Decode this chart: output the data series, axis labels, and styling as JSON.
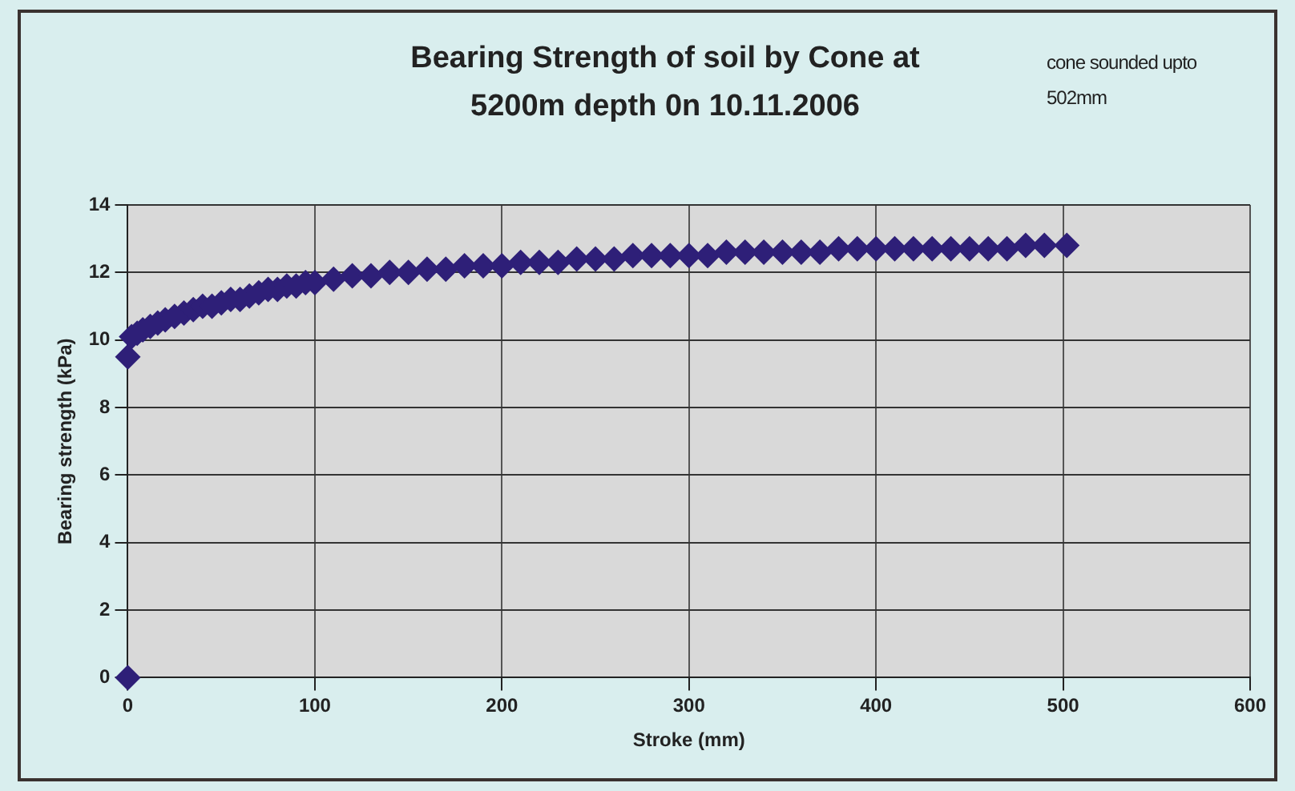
{
  "chart_data": {
    "type": "scatter",
    "title": "Bearing Strength of soil by Cone at 5200m depth 0n 10.11.2006",
    "annotations": [
      "cone sounded upto 502mm"
    ],
    "xlabel": "Stroke (mm)",
    "ylabel": "Bearing strength (kPa)",
    "x": [
      0,
      0,
      2,
      5,
      8,
      12,
      16,
      20,
      25,
      30,
      35,
      40,
      45,
      50,
      55,
      60,
      65,
      70,
      75,
      80,
      85,
      90,
      95,
      100,
      110,
      120,
      130,
      140,
      150,
      160,
      170,
      180,
      190,
      200,
      210,
      220,
      230,
      240,
      250,
      260,
      270,
      280,
      290,
      300,
      310,
      320,
      330,
      340,
      350,
      360,
      370,
      380,
      390,
      400,
      410,
      420,
      430,
      440,
      450,
      460,
      470,
      480,
      490,
      502
    ],
    "series": [
      {
        "color": "#2e1f78",
        "values": [
          0,
          9.5,
          10.1,
          10.2,
          10.3,
          10.4,
          10.5,
          10.6,
          10.7,
          10.8,
          10.9,
          11.0,
          11.0,
          11.1,
          11.2,
          11.2,
          11.3,
          11.4,
          11.5,
          11.5,
          11.6,
          11.6,
          11.7,
          11.7,
          11.8,
          11.9,
          11.9,
          12.0,
          12.0,
          12.1,
          12.1,
          12.2,
          12.2,
          12.2,
          12.3,
          12.3,
          12.3,
          12.4,
          12.4,
          12.4,
          12.5,
          12.5,
          12.5,
          12.5,
          12.5,
          12.6,
          12.6,
          12.6,
          12.6,
          12.6,
          12.6,
          12.7,
          12.7,
          12.7,
          12.7,
          12.7,
          12.7,
          12.7,
          12.7,
          12.7,
          12.7,
          12.8,
          12.8,
          12.8
        ]
      }
    ],
    "xlim": [
      0,
      600
    ],
    "xticks": [
      0,
      100,
      200,
      300,
      400,
      500,
      600
    ],
    "ylim": [
      0,
      14
    ],
    "yticks": [
      0,
      2,
      4,
      6,
      8,
      10,
      12,
      14
    ],
    "grid": true,
    "marker": "diamond",
    "legend": false
  }
}
